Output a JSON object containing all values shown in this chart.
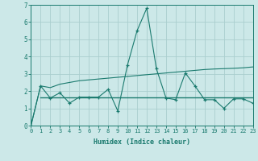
{
  "x": [
    0,
    1,
    2,
    3,
    4,
    5,
    6,
    7,
    8,
    9,
    10,
    11,
    12,
    13,
    14,
    15,
    16,
    17,
    18,
    19,
    20,
    21,
    22,
    23
  ],
  "line1": [
    0.0,
    2.3,
    1.6,
    1.9,
    1.3,
    1.65,
    1.65,
    1.65,
    2.1,
    0.85,
    3.5,
    5.5,
    6.8,
    3.3,
    1.6,
    1.5,
    3.05,
    2.3,
    1.5,
    1.5,
    1.0,
    1.55,
    1.55,
    1.3
  ],
  "line2": [
    0.0,
    2.3,
    2.2,
    2.4,
    2.5,
    2.6,
    2.65,
    2.7,
    2.75,
    2.8,
    2.85,
    2.9,
    2.95,
    3.0,
    3.05,
    3.1,
    3.15,
    3.2,
    3.25,
    3.28,
    3.3,
    3.32,
    3.35,
    3.4
  ],
  "line3": [
    1.65,
    1.65,
    1.65,
    1.65,
    1.65,
    1.65,
    1.65,
    1.65,
    1.65,
    1.65,
    1.65,
    1.65,
    1.65,
    1.65,
    1.65,
    1.65,
    1.65,
    1.65,
    1.65,
    1.65,
    1.65,
    1.65,
    1.65
  ],
  "line3_x": [
    1,
    2,
    3,
    4,
    5,
    6,
    7,
    8,
    9,
    10,
    11,
    12,
    13,
    14,
    15,
    16,
    17,
    18,
    19,
    20,
    21,
    22,
    23
  ],
  "color_main": "#1a7a6e",
  "bg_color": "#cce8e8",
  "grid_color": "#aacece",
  "xlabel": "Humidex (Indice chaleur)",
  "ylim": [
    0,
    7
  ],
  "xlim": [
    0,
    23
  ],
  "yticks": [
    0,
    1,
    2,
    3,
    4,
    5,
    6,
    7
  ],
  "xticks": [
    0,
    1,
    2,
    3,
    4,
    5,
    6,
    7,
    8,
    9,
    10,
    11,
    12,
    13,
    14,
    15,
    16,
    17,
    18,
    19,
    20,
    21,
    22,
    23
  ]
}
